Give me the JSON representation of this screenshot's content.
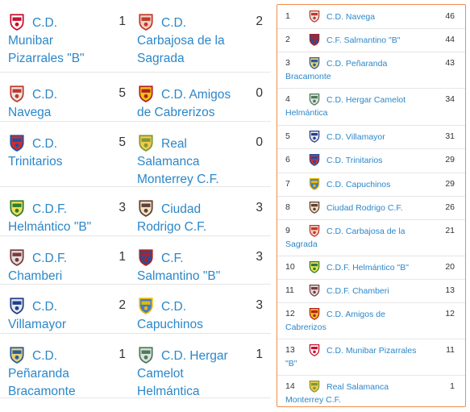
{
  "matches": [
    {
      "home": {
        "l1": "C.D.",
        "l2": "Munibar",
        "l3": "Pizarrales \"B\"",
        "crest": "munibar-crest-icon"
      },
      "home_score": "1",
      "away": {
        "l1": "C.D.",
        "l2": "Carbajosa de la",
        "l3": "Sagrada",
        "crest": "carbajosa-crest-icon"
      },
      "away_score": "2"
    },
    {
      "home": {
        "l1": "C.D.",
        "l2": "Navega",
        "l3": "",
        "crest": "navega-crest-icon"
      },
      "home_score": "5",
      "away": {
        "l1": "C.D. Amigos",
        "l2": "de Cabrerizos",
        "l3": "",
        "crest": "amigos-crest-icon"
      },
      "away_score": "0"
    },
    {
      "home": {
        "l1": "C.D.",
        "l2": "Trinitarios",
        "l3": "",
        "crest": "trinitarios-crest-icon"
      },
      "home_score": "5",
      "away": {
        "l1": "Real",
        "l2": "Salamanca",
        "l3": "Monterrey C.F.",
        "crest": "real-salamanca-crest-icon"
      },
      "away_score": "0"
    },
    {
      "home": {
        "l1": "C.D.F.",
        "l2": "Helmántico \"B\"",
        "l3": "",
        "crest": "helmantico-crest-icon"
      },
      "home_score": "3",
      "away": {
        "l1": "Ciudad",
        "l2": "Rodrigo C.F.",
        "l3": "",
        "crest": "ciudad-rodrigo-crest-icon"
      },
      "away_score": "3"
    },
    {
      "home": {
        "l1": "C.D.F.",
        "l2": "Chamberi",
        "l3": "",
        "crest": "chamberi-crest-icon"
      },
      "home_score": "1",
      "away": {
        "l1": "C.F.",
        "l2": "Salmantino \"B\"",
        "l3": "",
        "crest": "salmantino-crest-icon"
      },
      "away_score": "3"
    },
    {
      "home": {
        "l1": "C.D.",
        "l2": "Villamayor",
        "l3": "",
        "crest": "villamayor-crest-icon"
      },
      "home_score": "2",
      "away": {
        "l1": "C.D.",
        "l2": "Capuchinos",
        "l3": "",
        "crest": "capuchinos-crest-icon"
      },
      "away_score": "3"
    },
    {
      "home": {
        "l1": "C.D.",
        "l2": "Peñaranda",
        "l3": "Bracamonte",
        "crest": "penaranda-crest-icon"
      },
      "home_score": "1",
      "away": {
        "l1": "C.D. Hergar",
        "l2": "Camelot",
        "l3": "Helmántica",
        "crest": "hergar-crest-icon"
      },
      "away_score": "1"
    }
  ],
  "standings": [
    {
      "pos": "1",
      "l1": "C.D. Navega",
      "l2": "",
      "pts": "46",
      "crest": "navega-crest-icon"
    },
    {
      "pos": "2",
      "l1": "C.F. Salmantino \"B\"",
      "l2": "",
      "pts": "44",
      "crest": "salmantino-crest-icon"
    },
    {
      "pos": "3",
      "l1": "C.D. Peñaranda",
      "l2": "Bracamonte",
      "pts": "43",
      "crest": "penaranda-crest-icon"
    },
    {
      "pos": "4",
      "l1": "C.D. Hergar Camelot",
      "l2": "Helmántica",
      "pts": "34",
      "crest": "hergar-crest-icon"
    },
    {
      "pos": "5",
      "l1": "C.D. Villamayor",
      "l2": "",
      "pts": "31",
      "crest": "villamayor-crest-icon"
    },
    {
      "pos": "6",
      "l1": "C.D. Trinitarios",
      "l2": "",
      "pts": "29",
      "crest": "trinitarios-crest-icon"
    },
    {
      "pos": "7",
      "l1": "C.D. Capuchinos",
      "l2": "",
      "pts": "29",
      "crest": "capuchinos-crest-icon"
    },
    {
      "pos": "8",
      "l1": "Ciudad Rodrigo C.F.",
      "l2": "",
      "pts": "26",
      "crest": "ciudad-rodrigo-crest-icon"
    },
    {
      "pos": "9",
      "l1": "C.D. Carbajosa de la",
      "l2": "Sagrada",
      "pts": "21",
      "crest": "carbajosa-crest-icon"
    },
    {
      "pos": "10",
      "l1": "C.D.F. Helmántico \"B\"",
      "l2": "",
      "pts": "20",
      "crest": "helmantico-crest-icon"
    },
    {
      "pos": "11",
      "l1": "C.D.F. Chamberi",
      "l2": "",
      "pts": "13",
      "crest": "chamberi-crest-icon"
    },
    {
      "pos": "12",
      "l1": "C.D. Amigos de",
      "l2": "Cabrerizos",
      "pts": "12",
      "crest": "amigos-crest-icon"
    },
    {
      "pos": "13",
      "l1": "C.D. Munibar Pizarrales",
      "l2": "\"B\"",
      "pts": "11",
      "crest": "munibar-crest-icon"
    },
    {
      "pos": "14",
      "l1": "Real Salamanca",
      "l2": "Monterrey C.F.",
      "pts": "1",
      "crest": "real-salamanca-crest-icon"
    }
  ],
  "colors": {
    "link": "#2b87c9",
    "panel_border": "#f08c4a",
    "divider": "#e6e6e6",
    "text": "#333333"
  }
}
